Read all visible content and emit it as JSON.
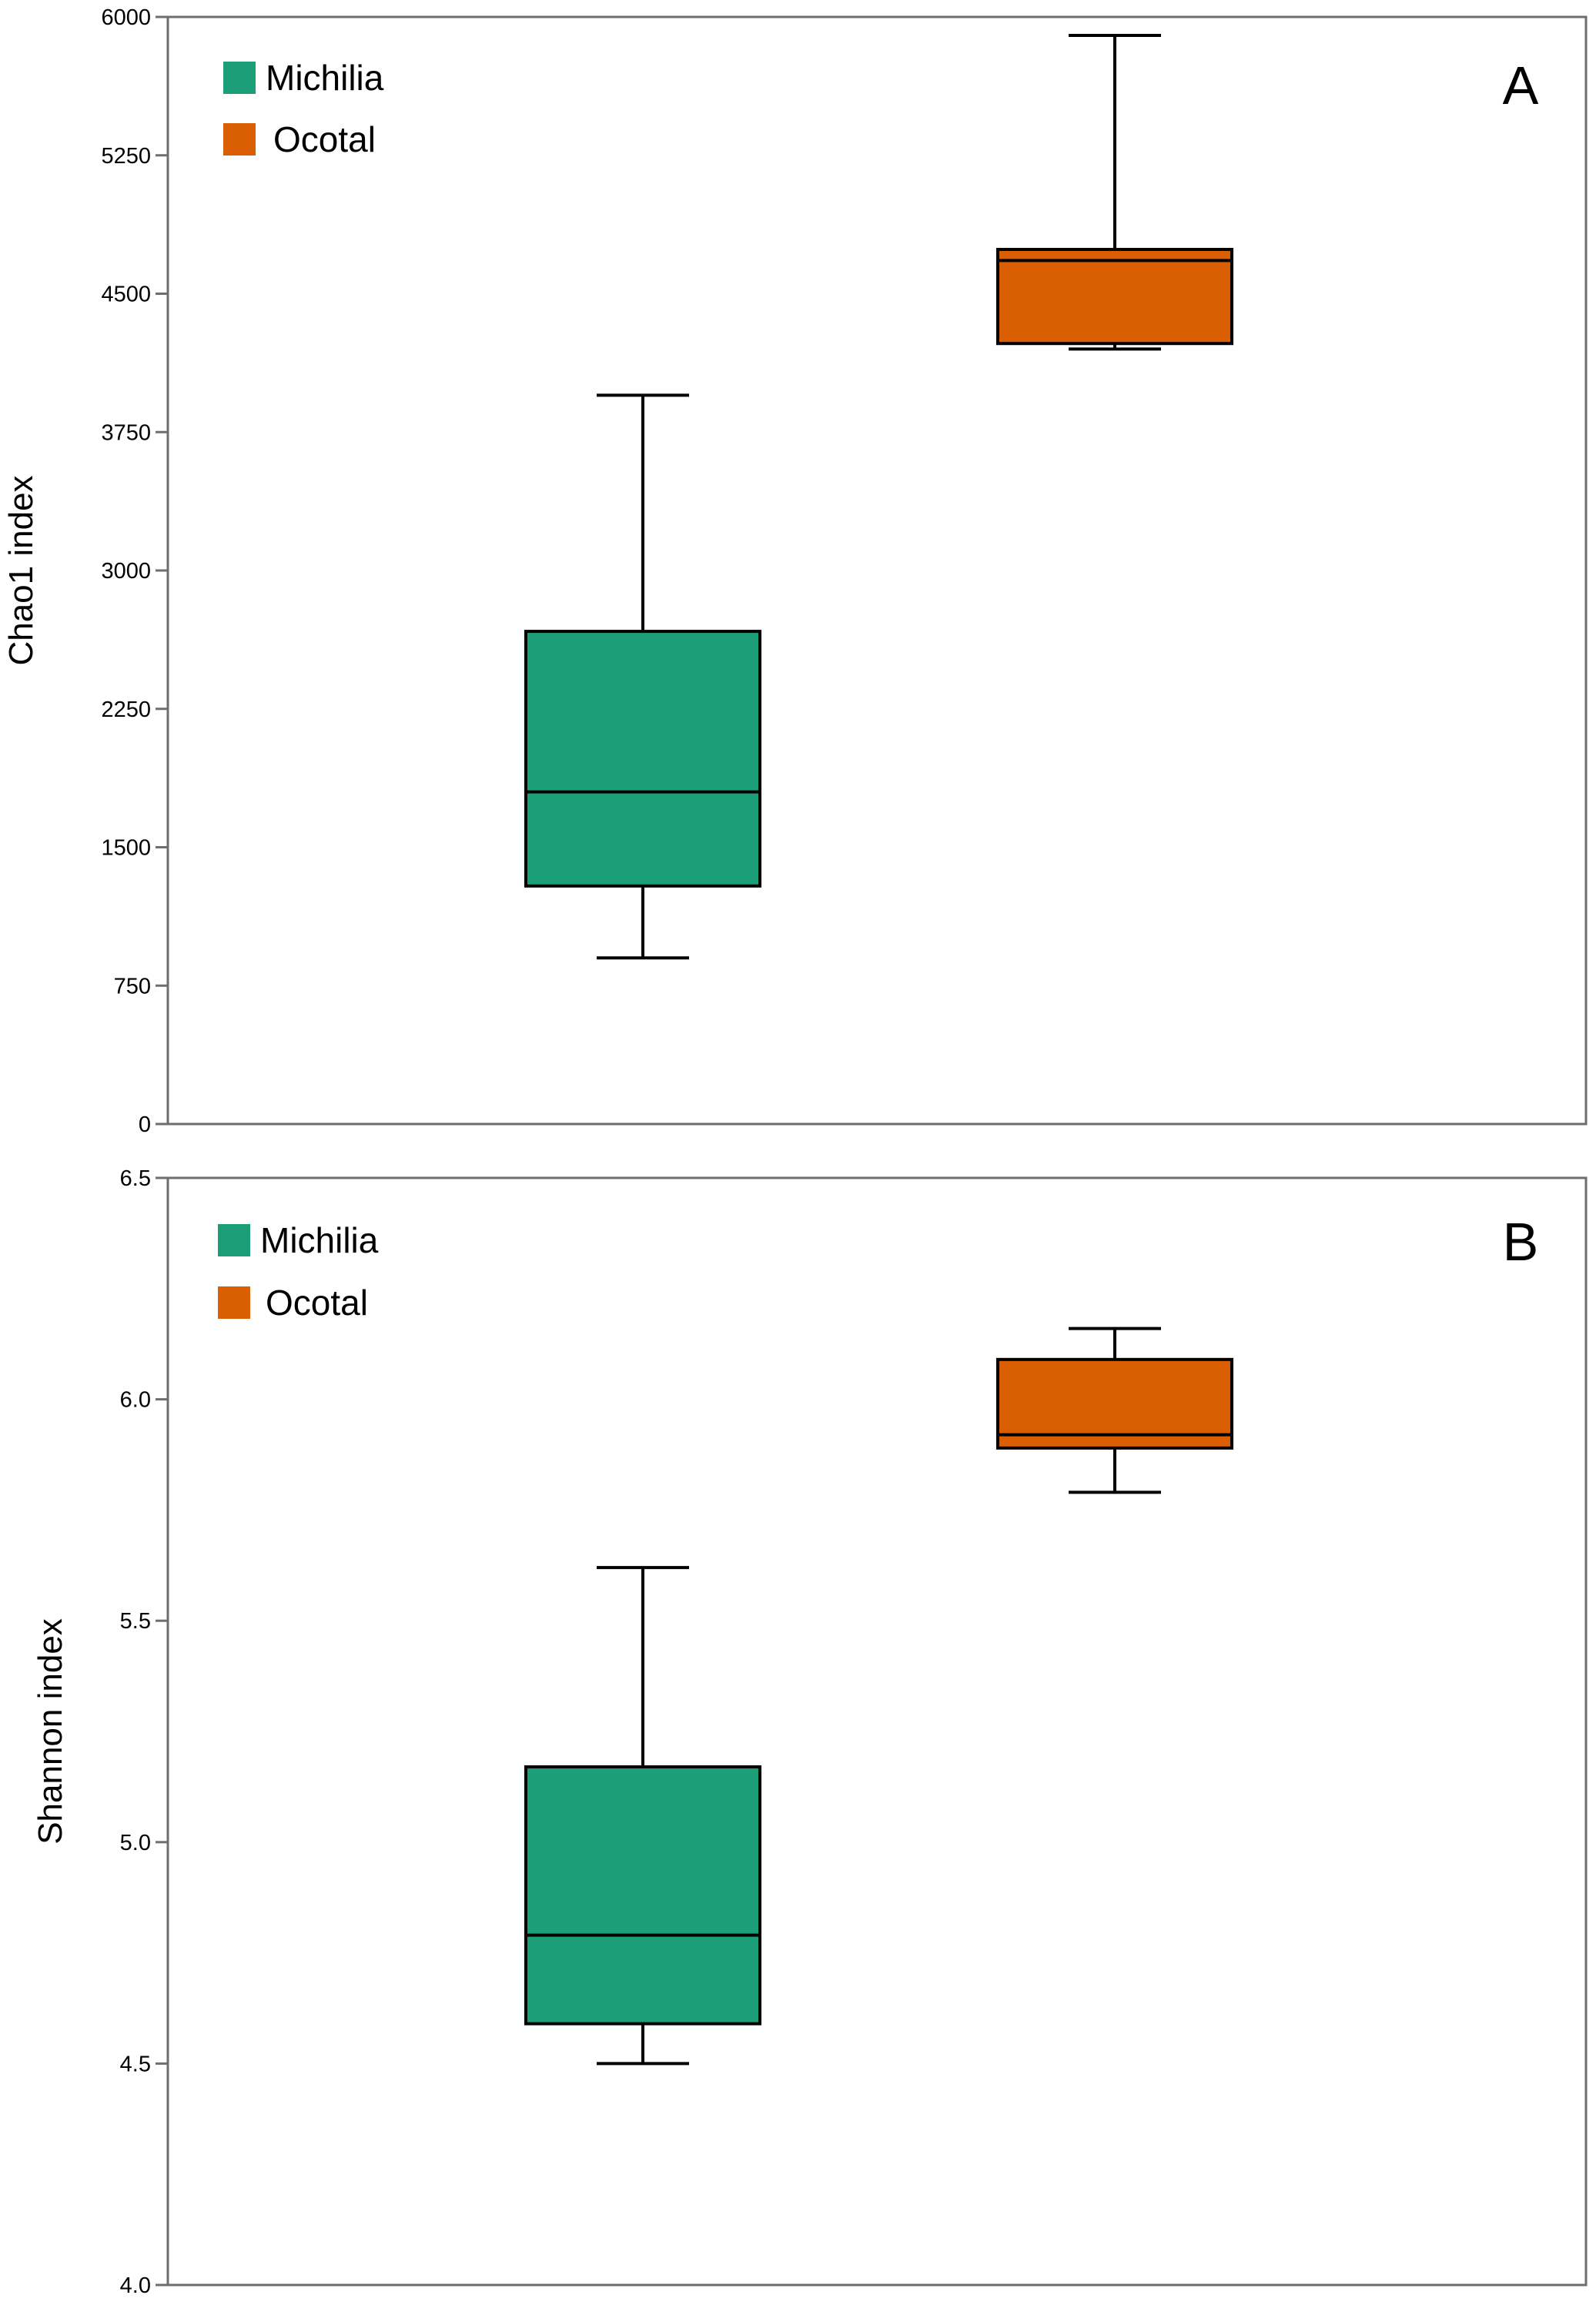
{
  "chart_data": [
    {
      "type": "box",
      "panel_label": "A",
      "ylabel": "Chao1 index",
      "ylim": [
        0,
        6000
      ],
      "yticks": [
        0,
        750,
        1500,
        2250,
        3000,
        3750,
        4500,
        5250,
        6000
      ],
      "legend": {
        "placement": "top-left",
        "entries": [
          "Michilia",
          "Ocotal"
        ]
      },
      "series": [
        {
          "name": "Michilia",
          "color": "#1c9e78",
          "min": 900,
          "q1": 1290,
          "median": 1800,
          "q3": 2670,
          "max": 3950
        },
        {
          "name": "Ocotal",
          "color": "#d95f02",
          "min": 4200,
          "q1": 4230,
          "median": 4680,
          "q3": 4740,
          "max": 5900
        }
      ]
    },
    {
      "type": "box",
      "panel_label": "B",
      "ylabel": "Shannon index",
      "ylim": [
        4.0,
        6.5
      ],
      "yticks": [
        "4.0",
        "4.5",
        "5.0",
        "5.5",
        "6.0",
        "6.5"
      ],
      "legend": {
        "placement": "top-left",
        "entries": [
          "Michilia",
          "Ocotal"
        ]
      },
      "series": [
        {
          "name": "Michilia",
          "color": "#1c9e78",
          "min": 4.5,
          "q1": 4.59,
          "median": 4.79,
          "q3": 5.17,
          "max": 5.62
        },
        {
          "name": "Ocotal",
          "color": "#d95f02",
          "min": 5.79,
          "q1": 5.89,
          "median": 5.92,
          "q3": 6.09,
          "max": 6.16
        }
      ]
    }
  ]
}
